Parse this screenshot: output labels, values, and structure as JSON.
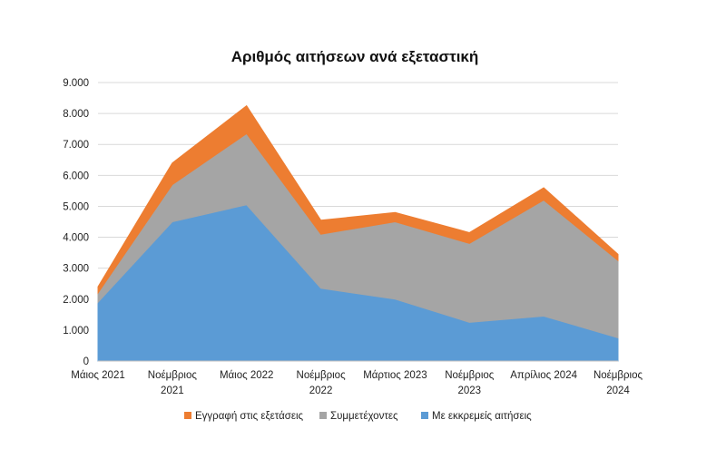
{
  "chart_data": {
    "type": "area",
    "stacked": true,
    "title": "Αριθμός αιτήσεων ανά εξεταστική",
    "xlabel": "",
    "ylabel": "",
    "ylim": [
      0,
      9000
    ],
    "y_ticks": [
      "0",
      "1.000",
      "2.000",
      "3.000",
      "4.000",
      "5.000",
      "6.000",
      "7.000",
      "8.000",
      "9.000"
    ],
    "y_tick_values": [
      0,
      1000,
      2000,
      3000,
      4000,
      5000,
      6000,
      7000,
      8000,
      9000
    ],
    "categories": [
      [
        "Μάιος 2021"
      ],
      [
        "Νοέμβριος",
        "2021"
      ],
      [
        "Μάιος 2022"
      ],
      [
        "Νοέμβριος",
        "2022"
      ],
      [
        "Μάρτιος 2023"
      ],
      [
        "Νοέμβριος",
        "2023"
      ],
      [
        "Απρίλιος 2024"
      ],
      [
        "Νοέμβριος",
        "2024"
      ]
    ],
    "grid": true,
    "legend_position": "bottom",
    "series": [
      {
        "name": "Με εκκρεμείς αιτήσεις",
        "color": "#5b9bd5",
        "values": [
          1900,
          4500,
          5050,
          2350,
          2000,
          1250,
          1450,
          750
        ]
      },
      {
        "name": "Συμμετέχοντες",
        "color": "#a5a5a5",
        "values": [
          300,
          1200,
          2300,
          1750,
          2500,
          2550,
          3750,
          2500
        ]
      },
      {
        "name": "Εγγραφή στις εξετάσεις",
        "color": "#ed7d31",
        "values": [
          200,
          700,
          900,
          450,
          300,
          350,
          400,
          200
        ]
      }
    ],
    "legend_order": [
      "Εγγραφή στις εξετάσεις",
      "Συμμετέχοντες",
      "Με εκκρεμείς αιτήσεις"
    ]
  }
}
